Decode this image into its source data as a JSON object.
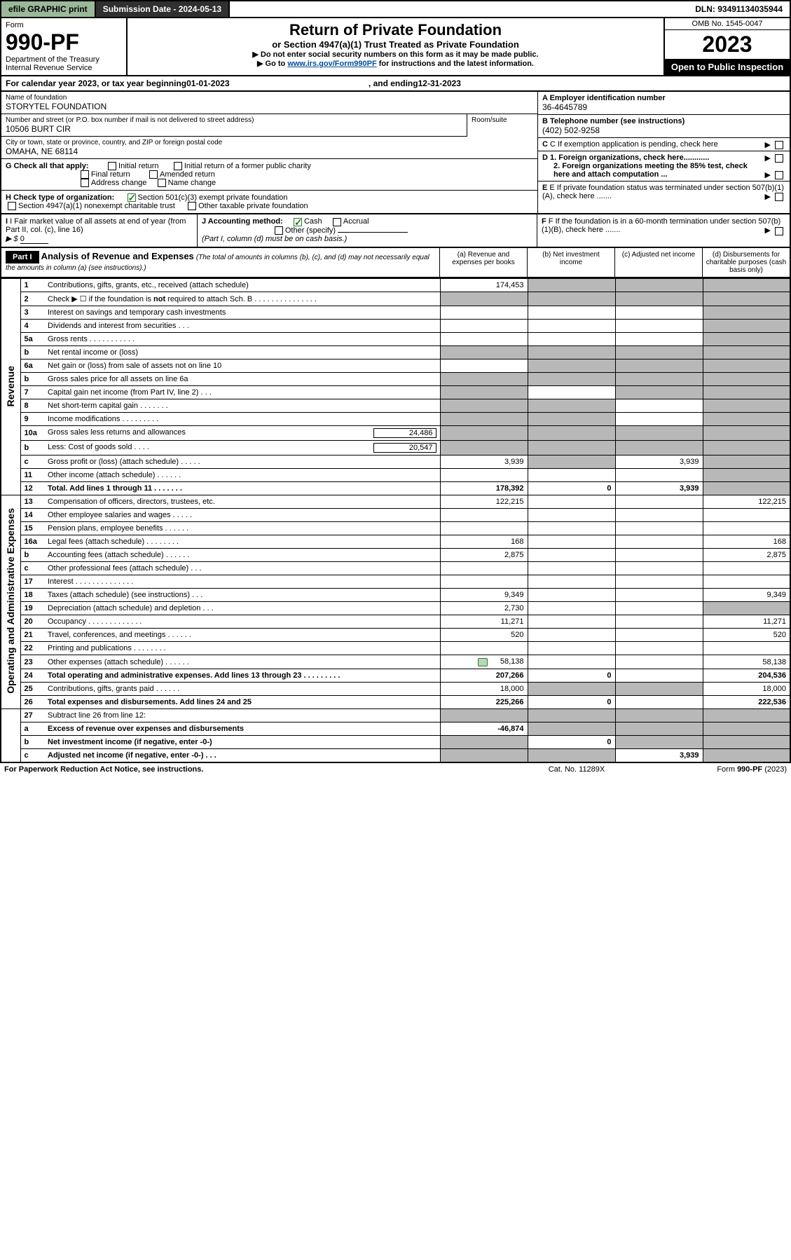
{
  "topbar": {
    "efile": "efile GRAPHIC print",
    "submission": "Submission Date - 2024-05-13",
    "dln": "DLN: 93491134035944"
  },
  "header": {
    "form_word": "Form",
    "form_num": "990-PF",
    "dept1": "Department of the Treasury",
    "dept2": "Internal Revenue Service",
    "title": "Return of Private Foundation",
    "subtitle": "or Section 4947(a)(1) Trust Treated as Private Foundation",
    "note1": "▶ Do not enter social security numbers on this form as it may be made public.",
    "note2_pre": "▶ Go to ",
    "note2_link": "www.irs.gov/Form990PF",
    "note2_post": " for instructions and the latest information.",
    "omb": "OMB No. 1545-0047",
    "year": "2023",
    "open": "Open to Public Inspection"
  },
  "calyear": {
    "pre": "For calendar year 2023, or tax year beginning ",
    "begin": "01-01-2023",
    "mid": ", and ending ",
    "end": "12-31-2023"
  },
  "info": {
    "name_lbl": "Name of foundation",
    "name": "STORYTEL FOUNDATION",
    "addr_lbl": "Number and street (or P.O. box number if mail is not delivered to street address)",
    "addr": "10506 BURT CIR",
    "room_lbl": "Room/suite",
    "city_lbl": "City or town, state or province, country, and ZIP or foreign postal code",
    "city": "OMAHA, NE  68114",
    "a_lbl": "A Employer identification number",
    "a_val": "36-4645789",
    "b_lbl": "B Telephone number (see instructions)",
    "b_val": "(402) 502-9258",
    "c_lbl": "C If exemption application is pending, check here",
    "g_lbl": "G Check all that apply:",
    "g_opts": [
      "Initial return",
      "Initial return of a former public charity",
      "Final return",
      "Amended return",
      "Address change",
      "Name change"
    ],
    "d1": "D 1. Foreign organizations, check here............",
    "d2": "2. Foreign organizations meeting the 85% test, check here and attach computation ...",
    "h_lbl": "H Check type of organization:",
    "h_opt1": "Section 501(c)(3) exempt private foundation",
    "h_opt2": "Section 4947(a)(1) nonexempt charitable trust",
    "h_opt3": "Other taxable private foundation",
    "e_lbl": "E If private foundation status was terminated under section 507(b)(1)(A), check here .......",
    "i_lbl": "I Fair market value of all assets at end of year (from Part II, col. (c), line 16)",
    "i_arrow": "▶ $",
    "i_val": "0",
    "j_lbl": "J Accounting method:",
    "j_cash": "Cash",
    "j_accrual": "Accrual",
    "j_other": "Other (specify)",
    "j_note": "(Part I, column (d) must be on cash basis.)",
    "f_lbl": "F If the foundation is in a 60-month termination under section 507(b)(1)(B), check here ......."
  },
  "part1": {
    "label": "Part I",
    "title": "Analysis of Revenue and Expenses",
    "ital": "(The total of amounts in columns (b), (c), and (d) may not necessarily equal the amounts in column (a) (see instructions).)",
    "col_a": "(a) Revenue and expenses per books",
    "col_b": "(b) Net investment income",
    "col_c": "(c) Adjusted net income",
    "col_d": "(d) Disbursements for charitable purposes (cash basis only)"
  },
  "sections": {
    "revenue": "Revenue",
    "opex": "Operating and Administrative Expenses"
  },
  "rows": [
    {
      "n": "1",
      "d": "Contributions, gifts, grants, etc., received (attach schedule)",
      "a": "174,453",
      "b": "g",
      "c": "g",
      "dd": "g"
    },
    {
      "n": "2",
      "d": "Check ▶ ☐ if the foundation is not required to attach Sch. B   .  .  .  .  .  .  .  .  .  .  .  .  .  .  .",
      "a": "g",
      "b": "g",
      "c": "g",
      "dd": "g",
      "bold_not": true
    },
    {
      "n": "3",
      "d": "Interest on savings and temporary cash investments",
      "a": "",
      "b": "",
      "c": "",
      "dd": "g"
    },
    {
      "n": "4",
      "d": "Dividends and interest from securities   .   .   .",
      "a": "",
      "b": "",
      "c": "",
      "dd": "g"
    },
    {
      "n": "5a",
      "d": "Gross rents   .   .   .   .   .   .   .   .   .   .   .",
      "a": "",
      "b": "",
      "c": "",
      "dd": "g"
    },
    {
      "n": "b",
      "d": "Net rental income or (loss)",
      "a": "g",
      "b": "g",
      "c": "g",
      "dd": "g",
      "sub": true
    },
    {
      "n": "6a",
      "d": "Net gain or (loss) from sale of assets not on line 10",
      "a": "",
      "b": "g",
      "c": "g",
      "dd": "g"
    },
    {
      "n": "b",
      "d": "Gross sales price for all assets on line 6a",
      "a": "g",
      "b": "g",
      "c": "g",
      "dd": "g",
      "sub": true
    },
    {
      "n": "7",
      "d": "Capital gain net income (from Part IV, line 2)   .   .   .",
      "a": "g",
      "b": "",
      "c": "g",
      "dd": "g"
    },
    {
      "n": "8",
      "d": "Net short-term capital gain   .   .   .   .   .   .   .",
      "a": "g",
      "b": "g",
      "c": "",
      "dd": "g"
    },
    {
      "n": "9",
      "d": "Income modifications   .   .   .   .   .   .   .   .   .",
      "a": "g",
      "b": "g",
      "c": "",
      "dd": "g"
    },
    {
      "n": "10a",
      "d": "Gross sales less returns and allowances",
      "a": "g",
      "b": "g",
      "c": "g",
      "dd": "g",
      "inline": "24,486"
    },
    {
      "n": "b",
      "d": "Less: Cost of goods sold   .   .   .   .",
      "a": "g",
      "b": "g",
      "c": "g",
      "dd": "g",
      "inline": "20,547"
    },
    {
      "n": "c",
      "d": "Gross profit or (loss) (attach schedule)   .   .   .   .   .",
      "a": "3,939",
      "b": "g",
      "c": "3,939",
      "dd": "g"
    },
    {
      "n": "11",
      "d": "Other income (attach schedule)   .   .   .   .   .   .",
      "a": "",
      "b": "",
      "c": "",
      "dd": "g"
    },
    {
      "n": "12",
      "d": "Total. Add lines 1 through 11   .   .   .   .   .   .   .",
      "a": "178,392",
      "b": "0",
      "c": "3,939",
      "dd": "g",
      "bold": true
    }
  ],
  "rows2": [
    {
      "n": "13",
      "d": "Compensation of officers, directors, trustees, etc.",
      "a": "122,215",
      "b": "",
      "c": "",
      "dd": "122,215"
    },
    {
      "n": "14",
      "d": "Other employee salaries and wages   .   .   .   .   .",
      "a": "",
      "b": "",
      "c": "",
      "dd": ""
    },
    {
      "n": "15",
      "d": "Pension plans, employee benefits   .   .   .   .   .   .",
      "a": "",
      "b": "",
      "c": "",
      "dd": ""
    },
    {
      "n": "16a",
      "d": "Legal fees (attach schedule)   .   .   .   .   .   .   .   .",
      "a": "168",
      "b": "",
      "c": "",
      "dd": "168"
    },
    {
      "n": "b",
      "d": "Accounting fees (attach schedule)   .   .   .   .   .   .",
      "a": "2,875",
      "b": "",
      "c": "",
      "dd": "2,875"
    },
    {
      "n": "c",
      "d": "Other professional fees (attach schedule)   .   .   .",
      "a": "",
      "b": "",
      "c": "",
      "dd": ""
    },
    {
      "n": "17",
      "d": "Interest   .   .   .   .   .   .   .   .   .   .   .   .   .   .",
      "a": "",
      "b": "",
      "c": "",
      "dd": ""
    },
    {
      "n": "18",
      "d": "Taxes (attach schedule) (see instructions)   .   .   .",
      "a": "9,349",
      "b": "",
      "c": "",
      "dd": "9,349"
    },
    {
      "n": "19",
      "d": "Depreciation (attach schedule) and depletion   .   .   .",
      "a": "2,730",
      "b": "",
      "c": "",
      "dd": "g"
    },
    {
      "n": "20",
      "d": "Occupancy   .   .   .   .   .   .   .   .   .   .   .   .   .",
      "a": "11,271",
      "b": "",
      "c": "",
      "dd": "11,271"
    },
    {
      "n": "21",
      "d": "Travel, conferences, and meetings   .   .   .   .   .   .",
      "a": "520",
      "b": "",
      "c": "",
      "dd": "520"
    },
    {
      "n": "22",
      "d": "Printing and publications   .   .   .   .   .   .   .   .",
      "a": "",
      "b": "",
      "c": "",
      "dd": ""
    },
    {
      "n": "23",
      "d": "Other expenses (attach schedule)   .   .   .   .   .   .",
      "a": "58,138",
      "b": "",
      "c": "",
      "dd": "58,138",
      "icon": true
    },
    {
      "n": "24",
      "d": "Total operating and administrative expenses. Add lines 13 through 23   .   .   .   .   .   .   .   .   .",
      "a": "207,266",
      "b": "0",
      "c": "",
      "dd": "204,536",
      "bold": true
    },
    {
      "n": "25",
      "d": "Contributions, gifts, grants paid   .   .   .   .   .   .",
      "a": "18,000",
      "b": "g",
      "c": "g",
      "dd": "18,000"
    },
    {
      "n": "26",
      "d": "Total expenses and disbursements. Add lines 24 and 25",
      "a": "225,266",
      "b": "0",
      "c": "",
      "dd": "222,536",
      "bold": true
    }
  ],
  "rows3": [
    {
      "n": "27",
      "d": "Subtract line 26 from line 12:",
      "a": "g",
      "b": "g",
      "c": "g",
      "dd": "g"
    },
    {
      "n": "a",
      "d": "Excess of revenue over expenses and disbursements",
      "a": "-46,874",
      "b": "g",
      "c": "g",
      "dd": "g",
      "bold": true
    },
    {
      "n": "b",
      "d": "Net investment income (if negative, enter -0-)",
      "a": "g",
      "b": "0",
      "c": "g",
      "dd": "g",
      "bold": true
    },
    {
      "n": "c",
      "d": "Adjusted net income (if negative, enter -0-)   .   .   .",
      "a": "g",
      "b": "g",
      "c": "3,939",
      "dd": "g",
      "bold": true
    }
  ],
  "footer": {
    "left": "For Paperwork Reduction Act Notice, see instructions.",
    "mid": "Cat. No. 11289X",
    "right": "Form 990-PF (2023)"
  }
}
